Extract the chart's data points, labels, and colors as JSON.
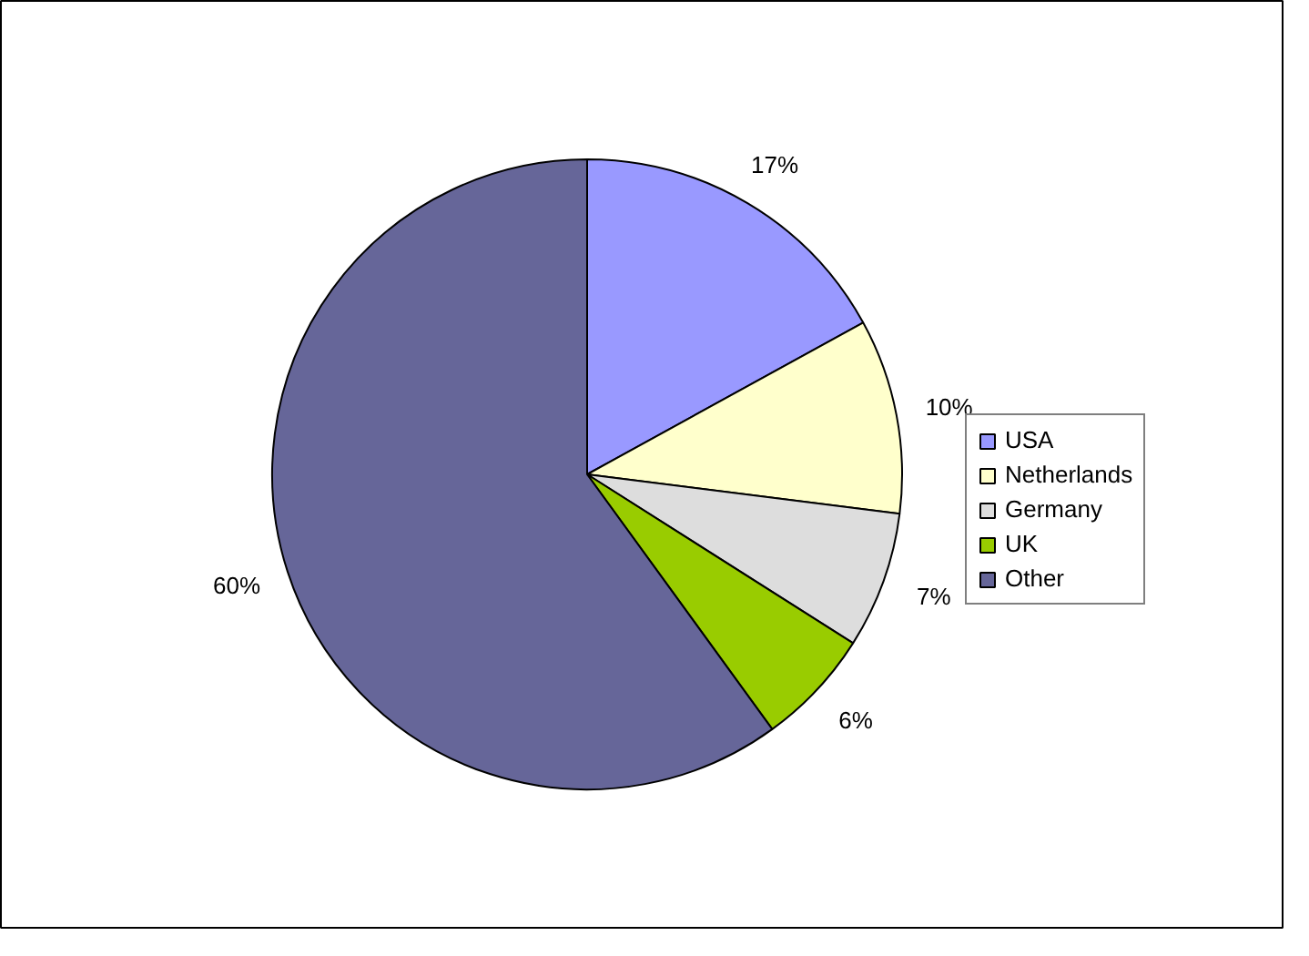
{
  "chart_data": {
    "type": "pie",
    "categories": [
      "USA",
      "Netherlands",
      "Germany",
      "UK",
      "Other"
    ],
    "values": [
      17,
      10,
      7,
      6,
      60
    ],
    "colors": [
      "#9999ff",
      "#ffffcc",
      "#dddddd",
      "#99cc00",
      "#666699"
    ],
    "value_labels": [
      "17%",
      "10%",
      "7%",
      "6%",
      "60%"
    ],
    "legend": "right"
  }
}
